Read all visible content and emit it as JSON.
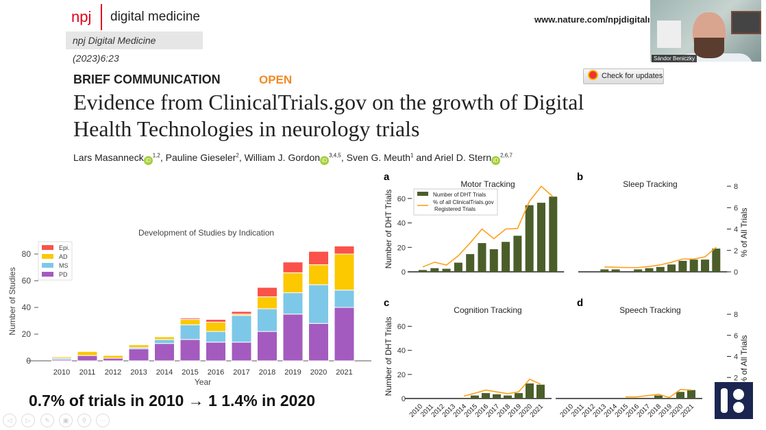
{
  "header": {
    "brand_npj": "npj",
    "brand_name": "digital medicine",
    "citation": "npj Digital Medicine (2023)6:23",
    "url": "www.nature.com/npjdigitalmed"
  },
  "article": {
    "type": "BRIEF COMMUNICATION",
    "access": "OPEN",
    "title": "Evidence from ClinicalTrials.gov on the growth of Digital Health Technologies in neurology trials",
    "authors": [
      {
        "name": "Lars Masanneck",
        "orcid": true,
        "aff": "1,2"
      },
      {
        "name": "Pauline Gieseler",
        "orcid": false,
        "aff": "2"
      },
      {
        "name": "William J. Gordon",
        "orcid": true,
        "aff": "3,4,5"
      },
      {
        "name": "Sven G. Meuth",
        "orcid": false,
        "aff": "1"
      },
      {
        "name": "Ariel D. Stern",
        "orcid": true,
        "aff": "2,6,7"
      }
    ],
    "orcid_label": "iD",
    "and": "and",
    "check_updates": "Check for updates"
  },
  "video": {
    "participant": "Sándor Beniczky"
  },
  "claim": "0.7% of trials in 2010  →  1 1.4% in 2020",
  "icons": [
    "prev-icon",
    "next-icon",
    "pen-icon",
    "slides-icon",
    "zoom-icon",
    "more-icon",
    "envelope-icon"
  ],
  "colors": {
    "PD": "#a45bbf",
    "MS": "#7dc8e8",
    "AD": "#fcc800",
    "Epi": "#fa524b",
    "bar": "#4b5e2a",
    "line": "#ff9f1a",
    "logo": "#1b2650"
  },
  "chart_data": [
    {
      "type": "bar",
      "stacked": true,
      "title": "Development of Studies by Indication",
      "xlabel": "Year",
      "ylabel": "Number of Studies",
      "ylim": [
        0,
        88
      ],
      "yticks": [
        0,
        20,
        40,
        60,
        80
      ],
      "legend": "top-left",
      "categories": [
        "2010",
        "2011",
        "2012",
        "2013",
        "2014",
        "2015",
        "2016",
        "2017",
        "2018",
        "2019",
        "2020",
        "2021"
      ],
      "series": [
        {
          "name": "PD",
          "values": [
            1,
            4,
            2,
            9,
            13,
            16,
            14,
            14,
            22,
            35,
            28,
            40
          ]
        },
        {
          "name": "MS",
          "values": [
            1,
            0,
            0,
            1,
            3,
            11,
            8,
            20,
            17,
            16,
            29,
            13
          ]
        },
        {
          "name": "AD",
          "values": [
            1,
            3,
            2,
            2,
            2,
            4,
            7,
            1,
            9,
            15,
            15,
            27
          ]
        },
        {
          "name": "Epi.",
          "values": [
            0,
            0,
            0,
            0,
            0,
            1,
            2,
            2,
            7,
            8,
            10,
            6
          ]
        }
      ]
    },
    {
      "type": "bar+line",
      "panel": "a",
      "title": "Motor Tracking",
      "ylabel": "Number of DHT Trials",
      "ylim": [
        0,
        70
      ],
      "y2lim": [
        0,
        8
      ],
      "legend": "top-left",
      "legend_entries": [
        "Number of DHT Trials",
        "% of all ClinicalTrials.gov Registered Trials"
      ],
      "categories": [
        "2010",
        "2011",
        "2012",
        "2013",
        "2014",
        "2015",
        "2016",
        "2017",
        "2018",
        "2019",
        "2020",
        "2021"
      ],
      "bars": [
        1.5,
        3,
        2.5,
        7.5,
        14.5,
        23.5,
        18.5,
        24.5,
        29.5,
        54.5,
        56.5,
        61.5
      ],
      "pct": [
        0.46,
        0.9,
        0.63,
        1.5,
        2.7,
        4.0,
        3.1,
        4.0,
        4.05,
        6.6,
        8.0,
        7.0
      ]
    },
    {
      "type": "bar+line",
      "panel": "b",
      "title": "Sleep Tracking",
      "y2label": "% of All Trials",
      "ylim": [
        0,
        70
      ],
      "y2lim": [
        0,
        8
      ],
      "categories": [
        "2010",
        "2011",
        "2012",
        "2013",
        "2014",
        "2015",
        "2016",
        "2017",
        "2018",
        "2019",
        "2020",
        "2021"
      ],
      "bars": [
        0,
        2,
        2,
        0,
        2,
        3,
        4,
        6,
        9,
        10,
        10,
        19
      ],
      "pct": [
        null,
        0.45,
        0.43,
        0.4,
        0.4,
        0.5,
        0.65,
        0.9,
        1.2,
        1.2,
        1.4,
        2.3
      ]
    },
    {
      "type": "bar+line",
      "panel": "c",
      "title": "Cognition Tracking",
      "ylabel": "Number of DHT Trials",
      "ylim": [
        0,
        70
      ],
      "y2lim": [
        0,
        8
      ],
      "categories": [
        "2010",
        "2011",
        "2012",
        "2013",
        "2014",
        "2015",
        "2016",
        "2017",
        "2018",
        "2019",
        "2020",
        "2021"
      ],
      "bars": [
        0,
        0,
        0,
        0,
        0.5,
        2.5,
        4.5,
        3.5,
        2.5,
        4.5,
        12.5,
        11.5
      ],
      "pct": [
        null,
        null,
        null,
        null,
        0.23,
        0.5,
        0.8,
        0.63,
        0.46,
        0.63,
        1.83,
        1.37
      ]
    },
    {
      "type": "bar+line",
      "panel": "d",
      "title": "Speech Tracking",
      "y2label": "% of All Trials",
      "ylim": [
        0,
        70
      ],
      "y2lim": [
        0,
        8
      ],
      "categories": [
        "2010",
        "2011",
        "2012",
        "2013",
        "2014",
        "2015",
        "2016",
        "2017",
        "2018",
        "2019",
        "2020",
        "2021"
      ],
      "bars": [
        0,
        0,
        0,
        0,
        0,
        0.5,
        0.5,
        0,
        2.5,
        0.5,
        5.5,
        7
      ],
      "pct": [
        null,
        null,
        null,
        null,
        null,
        0.15,
        0.15,
        0.27,
        0.4,
        0.1,
        0.85,
        0.8
      ]
    }
  ]
}
